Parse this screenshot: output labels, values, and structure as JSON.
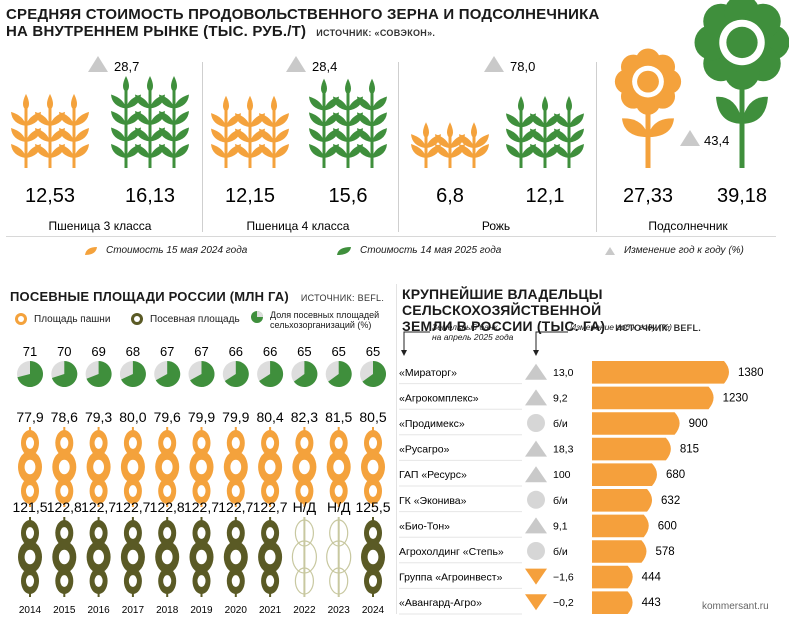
{
  "top": {
    "title_line1": "СРЕДНЯЯ СТОИМОСТЬ ПРОДОВОЛЬСТВЕННОГО ЗЕРНА И ПОДСОЛНЕЧНИКА",
    "title_line2": "НА ВНУТРЕННЕМ РЫНКЕ (ТЫС. РУБ./Т)",
    "source": "ИСТОЧНИК: «СОВЭКОН».",
    "legend": {
      "y2024": "Стоимость 15 мая 2024 года",
      "y2025": "Стоимость 14 мая 2025 года",
      "change": "Изменение год к году (%)"
    }
  },
  "middle_left": {
    "title": "ПОСЕВНЫЕ ПЛОЩАДИ РОССИИ (МЛН ГА)",
    "source": "ИСТОЧНИК: BEFL.",
    "legend": {
      "arable": "Площадь пашни",
      "sown": "Посевная площадь",
      "share_l1": "Доля посевных площадей",
      "share_l2": "сельхозорганизаций (%)"
    }
  },
  "right": {
    "title_line1": "КРУПНЕЙШИЕ ВЛАДЕЛЬЦЫ СЕЛЬСКОХОЗЯЙСТВЕННОЙ",
    "title_line2": "ЗЕМЛИ В РОССИИ (ТЫС. ГА)",
    "source": "ИСТОЧНИК: BEFL.",
    "col1_l1": "Земельный банк",
    "col1_l2": "на апрель 2025 года",
    "col2": "Изменение год к году (%)",
    "credit": "kommersant.ru"
  },
  "chart_data": [
    {
      "type": "bar",
      "title": "СРЕДНЯЯ СТОИМОСТЬ ПРОДОВОЛЬСТВЕННОГО ЗЕРНА И ПОДСОЛНЕЧНИКА НА ВНУТРЕННЕМ РЫНКЕ (ТЫС. РУБ./Т)",
      "categories": [
        "Пшеница 3 класса",
        "Пшеница 4 класса",
        "Рожь",
        "Подсолнечник"
      ],
      "series": [
        {
          "name": "Стоимость 15 мая 2024 года",
          "values": [
            "12,53",
            "12,15",
            "6,8",
            "27,33"
          ]
        },
        {
          "name": "Стоимость 14 мая 2025 года",
          "values": [
            "16,13",
            "15,6",
            "12,1",
            "39,18"
          ]
        },
        {
          "name": "Изменение год к году (%)",
          "values": [
            "28,7",
            "28,4",
            "78,0",
            "43,4"
          ]
        }
      ],
      "colors": {
        "y2024": "#f4a23c",
        "y2025": "#3f8f3c",
        "change": "#c9c9c9"
      }
    },
    {
      "type": "table",
      "title": "ПОСЕВНЫЕ ПЛОЩАДИ РОССИИ (МЛН ГА)",
      "x": [
        "2014",
        "2015",
        "2016",
        "2017",
        "2018",
        "2019",
        "2020",
        "2021",
        "2022",
        "2023",
        "2024"
      ],
      "series": [
        {
          "name": "Доля посевных площадей сельхозорганизаций (%)",
          "values": [
            "71",
            "70",
            "69",
            "68",
            "67",
            "67",
            "66",
            "66",
            "65",
            "65",
            "65"
          ]
        },
        {
          "name": "Посевная площадь",
          "values": [
            "77,9",
            "78,6",
            "79,3",
            "80,0",
            "79,6",
            "79,9",
            "79,9",
            "80,4",
            "82,3",
            "81,5",
            "80,5"
          ]
        },
        {
          "name": "Площадь пашни",
          "values": [
            "121,5",
            "122,8",
            "122,7",
            "122,7",
            "122,8",
            "122,7",
            "122,7",
            "122,7",
            "Н/Д",
            "Н/Д",
            "125,5"
          ]
        }
      ],
      "colors": {
        "arable": "#f4a23c",
        "sown": "#5a5a25",
        "share": "#3f8f3c"
      }
    },
    {
      "type": "bar",
      "title": "КРУПНЕЙШИЕ ВЛАДЕЛЬЦЫ СЕЛЬСКОХОЗЯЙСТВЕННОЙ ЗЕМЛИ В РОССИИ (ТЫС. ГА)",
      "categories": [
        "«Мираторг»",
        "«Агрокомплекс»",
        "«Продимекс»",
        "«Русагро»",
        "ГАП «Ресурс»",
        "ГК «Эконива»",
        "«Био-Тон»",
        "Агрохолдинг «Степь»",
        "Группа «Агроинвест»",
        "«Авангард-Агро»"
      ],
      "series": [
        {
          "name": "Земельный банк на апрель 2025 года",
          "values": [
            1380,
            1230,
            900,
            815,
            680,
            632,
            600,
            578,
            444,
            443
          ]
        },
        {
          "name": "Изменение год к году (%)",
          "values": [
            "13,0",
            "9,2",
            "б/и",
            "18,3",
            "100",
            "б/и",
            "9,1",
            "б/и",
            "−1,6",
            "−0,2"
          ]
        }
      ],
      "change_direction": [
        "up",
        "up",
        "none",
        "up",
        "up",
        "none",
        "up",
        "none",
        "down",
        "down"
      ],
      "xlim": [
        0,
        1380
      ],
      "colors": {
        "bar": "#f5a03c",
        "up": "#c9c9c9",
        "down": "#f5a03c"
      }
    }
  ]
}
